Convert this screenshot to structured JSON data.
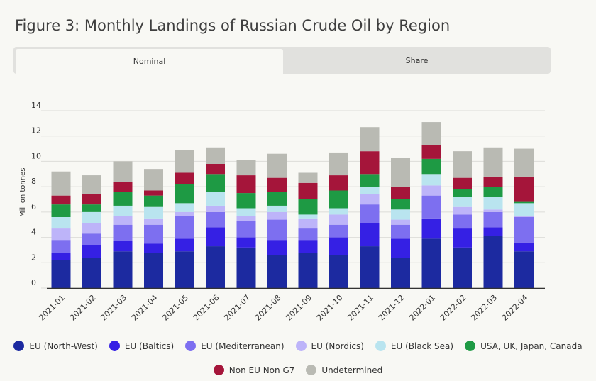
{
  "title": "Figure 3: Monthly Landings of Russian Crude Oil by Region",
  "tabs": [
    {
      "label": "Nominal",
      "active": true
    },
    {
      "label": "Share",
      "active": false
    }
  ],
  "chart_data": {
    "type": "bar",
    "stacked": true,
    "ylabel": "Million tonnes",
    "ylim": [
      0,
      14
    ],
    "yticks": [
      "0",
      "2",
      "4",
      "6",
      "8",
      "10",
      "12",
      "14"
    ],
    "grid": true,
    "legend_position": "bottom",
    "categories": [
      "2021-01",
      "2021-02",
      "2021-03",
      "2021-04",
      "2021-05",
      "2021-06",
      "2021-07",
      "2021-08",
      "2021-09",
      "2021-10",
      "2021-11",
      "2021-12",
      "2022-01",
      "2022-02",
      "2022-03",
      "2022-04"
    ],
    "series": [
      {
        "name": "EU (North-West)",
        "color": "#1c2aa0",
        "values": [
          2.2,
          2.4,
          2.9,
          2.8,
          2.9,
          3.3,
          3.2,
          2.6,
          2.8,
          2.6,
          3.3,
          2.4,
          3.9,
          3.2,
          4.1,
          2.9
        ]
      },
      {
        "name": "EU (Baltics)",
        "color": "#3520e4",
        "values": [
          0.6,
          1.0,
          0.8,
          0.7,
          1.0,
          1.5,
          0.8,
          1.2,
          1.0,
          1.4,
          1.8,
          1.5,
          1.6,
          1.5,
          0.7,
          0.7
        ]
      },
      {
        "name": "EU (Mediterranean)",
        "color": "#7d6ff0",
        "values": [
          1.0,
          0.9,
          1.3,
          1.5,
          1.8,
          1.2,
          1.3,
          1.6,
          0.9,
          1.0,
          1.5,
          1.1,
          1.8,
          1.1,
          1.2,
          2.0
        ]
      },
      {
        "name": "EU (Nordics)",
        "color": "#bdb4f9",
        "values": [
          0.9,
          0.8,
          0.7,
          0.5,
          0.3,
          0.5,
          0.4,
          0.6,
          0.8,
          0.8,
          0.8,
          0.4,
          0.8,
          0.6,
          0.2,
          0.1
        ]
      },
      {
        "name": "EU (Black Sea)",
        "color": "#b9e4ef",
        "values": [
          0.9,
          0.9,
          0.8,
          0.9,
          0.7,
          1.1,
          0.6,
          0.5,
          0.3,
          0.5,
          0.6,
          0.8,
          0.9,
          0.8,
          1.0,
          1.0
        ]
      },
      {
        "name": "USA, UK, Japan, Canada",
        "color": "#1e9a44",
        "values": [
          1.0,
          0.6,
          1.1,
          0.9,
          1.5,
          1.4,
          1.2,
          1.1,
          1.2,
          1.4,
          1.0,
          0.8,
          1.2,
          0.6,
          0.8,
          0.1
        ]
      },
      {
        "name": "Non EU Non G7",
        "color": "#a5153a",
        "values": [
          0.7,
          0.8,
          0.8,
          0.4,
          0.9,
          0.8,
          1.4,
          1.1,
          1.3,
          1.2,
          1.8,
          1.0,
          1.1,
          0.9,
          0.8,
          2.0
        ]
      },
      {
        "name": "Undetermined",
        "color": "#b9bab3",
        "values": [
          1.9,
          1.5,
          1.6,
          1.7,
          1.8,
          1.3,
          1.2,
          1.9,
          0.8,
          1.8,
          1.9,
          2.3,
          1.8,
          2.1,
          2.3,
          2.2
        ]
      }
    ]
  }
}
